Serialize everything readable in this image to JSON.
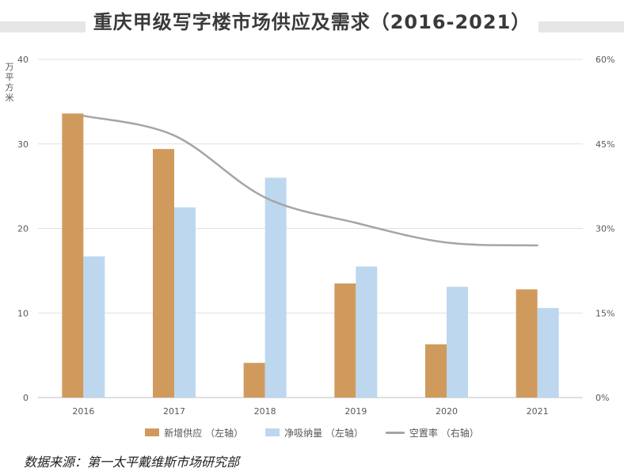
{
  "chart_data": {
    "type": "bar",
    "title": "重庆甲级写字楼市场供应及需求（2016-2021）",
    "unit_label": "万平方米",
    "categories": [
      "2016",
      "2017",
      "2018",
      "2019",
      "2020",
      "2021"
    ],
    "series": [
      {
        "name": "新增供应 （左轴）",
        "type": "bar",
        "axis": "left",
        "color": "#d19a5d",
        "values": [
          33.6,
          29.4,
          4.1,
          13.5,
          6.3,
          12.8
        ]
      },
      {
        "name": "净吸纳量 （左轴）",
        "type": "bar",
        "axis": "left",
        "color": "#bdd7ee",
        "values": [
          16.7,
          22.5,
          26.0,
          15.5,
          13.1,
          10.6
        ]
      },
      {
        "name": "空置率 （右轴）",
        "type": "line",
        "axis": "right",
        "color": "#a5a5a5",
        "values": [
          50.0,
          46.5,
          35.5,
          31.0,
          27.5,
          27.0
        ]
      }
    ],
    "y_left": {
      "min": 0,
      "max": 40,
      "ticks": [
        "0",
        "10",
        "20",
        "30",
        "40"
      ]
    },
    "y_right": {
      "min": 0,
      "max": 60,
      "ticks": [
        "0%",
        "15%",
        "30%",
        "45%",
        "60%"
      ]
    },
    "grid": true,
    "legend_position": "bottom"
  },
  "source": "数据来源：第一太平戴维斯市场研究部"
}
